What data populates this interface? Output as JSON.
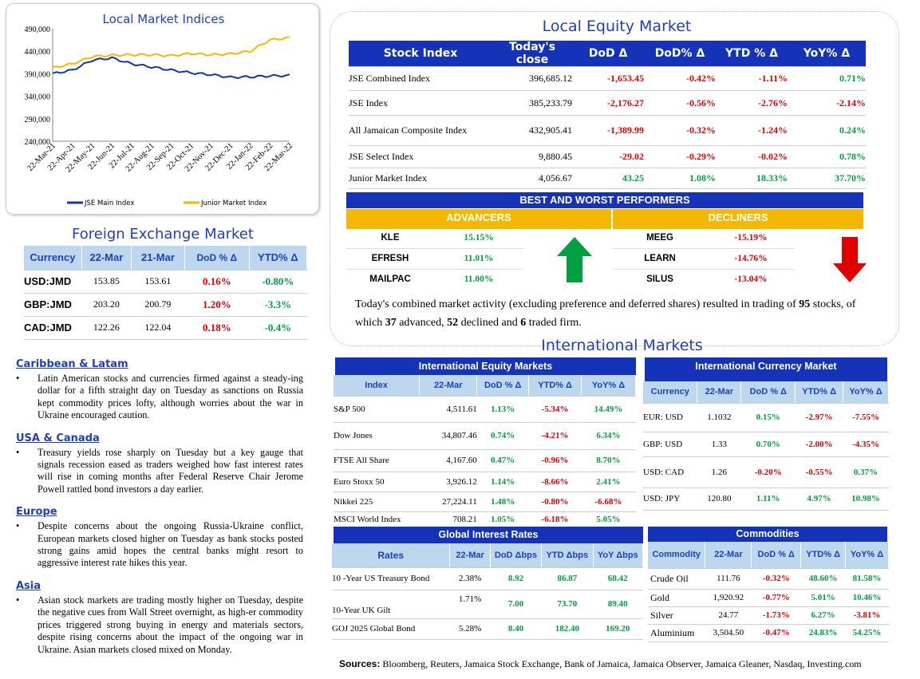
{
  "chart_data": {
    "type": "line",
    "title": "Local Market Indices",
    "x": [
      "22-Mar-21",
      "22-Apr-21",
      "22-May-21",
      "22-Jun-21",
      "22-Jul-21",
      "22-Aug-21",
      "22-Sep-21",
      "22-Oct-21",
      "22-Nov-21",
      "22-Dec-21",
      "22-Jan-22",
      "22-Feb-22",
      "22-Mar-22"
    ],
    "ylim": [
      240000,
      490000
    ],
    "yticks": [
      "490,000",
      "440,000",
      "390,000",
      "340,000",
      "290,000",
      "240,000"
    ],
    "series": [
      {
        "name": "JSE Main Index",
        "color": "#1433b8",
        "values": [
          390000,
          398000,
          420000,
          425000,
          412000,
          405000,
          398000,
          392000,
          388000,
          382000,
          383000,
          385000,
          386000
        ]
      },
      {
        "name": "Junior Market Index",
        "color": "#f5b800",
        "values": [
          403000,
          412000,
          428000,
          431000,
          432000,
          432000,
          430000,
          435000,
          432000,
          434000,
          440000,
          465000,
          470000
        ]
      }
    ]
  },
  "fx": {
    "title": "Foreign Exchange Market",
    "headers": [
      "Currency",
      "22-Mar",
      "21-Mar",
      "DoD % Δ",
      "YTD% Δ"
    ],
    "rows": [
      [
        "USD:JMD",
        "153.85",
        "153.61",
        "0.16%",
        "-0.80%"
      ],
      [
        "GBP:JMD",
        "203.20",
        "200.79",
        "1.20%",
        "-3.3%"
      ],
      [
        "CAD:JMD",
        "122.26",
        "122.04",
        "0.18%",
        "-0.4%"
      ]
    ]
  },
  "news": [
    {
      "head": "Caribbean & Latam",
      "text": "Latin American stocks and currencies firmed against a steady-ing dollar for a fifth straight day on Tuesday as sanctions on Russia kept commodity prices lofty, although worries about the war in Ukraine encouraged caution."
    },
    {
      "head": "USA & Canada",
      "text": "Treasury yields rose sharply on Tuesday but a key gauge that signals recession eased as traders weighed how fast interest rates will rise in coming months after Federal Reserve Chair Jerome Powell rattled bond investors a day earlier."
    },
    {
      "head": "Europe",
      "text": "Despite concerns about the ongoing Russia-Ukraine conflict, European markets closed higher on Tuesday as bank stocks posted strong gains amid hopes the central banks might resort to aggressive interest rate hikes this year."
    },
    {
      "head": "Asia",
      "text": "Asian stock markets are trading mostly higher on Tuesday, despite the negative cues from Wall Street overnight, as high-er commodity prices triggered strong buying in energy and materials sectors, despite rising concerns about the impact of the ongoing war in Ukraine. Asian markets closed mixed on Monday."
    }
  ],
  "equity": {
    "title": "Local Equity Market",
    "headers": [
      "Stock Index",
      "Today's close",
      "DoD  Δ",
      "DoD% Δ",
      "YTD % Δ",
      "YoY% Δ"
    ],
    "rows": [
      [
        "JSE Combined Index",
        "396,685.12",
        "-1,653.45",
        "-0.42%",
        "-1.11%",
        "0.71%"
      ],
      [
        "JSE Index",
        "385,233.79",
        "-2,176.27",
        "-0.56%",
        "-2.76%",
        "-2.14%"
      ],
      [
        "All Jamaican Composite Index",
        "432,905.41",
        "-1,389.99",
        "-0.32%",
        "-1.24%",
        "0.24%"
      ],
      [
        "JSE Select Index",
        "9,880.45",
        "-29.02",
        "-0.29%",
        "-0.02%",
        "0.78%"
      ],
      [
        "Junior Market Index",
        "4,056.67",
        "43.25",
        "1.08%",
        "18.33%",
        "37.70%"
      ]
    ]
  },
  "performers": {
    "title": "BEST AND WORST PERFORMERS",
    "adv_label": "ADVANCERS",
    "dec_label": "DECLINERS",
    "advancers": [
      [
        "KLE",
        "15.15%"
      ],
      [
        "EFRESH",
        "11.01%"
      ],
      [
        "MAILPAC",
        "11.00%"
      ]
    ],
    "decliners": [
      [
        "MEEG",
        "-15.19%"
      ],
      [
        "LEARN",
        "-14.76%"
      ],
      [
        "SILUS",
        "-13.04%"
      ]
    ]
  },
  "summary": {
    "pre": "Today's combined market activity (excluding preference and deferred shares) resulted in trading of ",
    "total": "95",
    "mid1": " stocks, of which ",
    "adv": "37",
    "mid2": " advanced, ",
    "dec": "52",
    "mid3": " declined and ",
    "firm": "6",
    "post": " traded firm."
  },
  "intl_title": "International Markets",
  "intl_equity": {
    "title": "International Equity Markets",
    "headers": [
      "Index",
      "22-Mar",
      "DoD % Δ",
      "YTD% Δ",
      "YoY% Δ"
    ],
    "rows": [
      [
        "S&P 500",
        "4,511.61",
        "1.13%",
        "-5.34%",
        "14.49%"
      ],
      [
        "Dow Jones",
        "34,807.46",
        "0.74%",
        "-4.21%",
        "6.34%"
      ],
      [
        "FTSE All Share",
        "4,167.60",
        "0.47%",
        "-0.96%",
        "8.70%"
      ],
      [
        "Euro Stoxx 50",
        "3,926.12",
        "1.14%",
        "-8.66%",
        "2.41%"
      ],
      [
        "Nikkei 225",
        "27,224.11",
        "1.48%",
        "-0.80%",
        "-6.68%"
      ],
      [
        "MSCI World Index",
        "708.21",
        "1.05%",
        "-6.18%",
        "5.05%"
      ]
    ]
  },
  "intl_fx": {
    "title": "International Currency Market",
    "headers": [
      "Currency",
      "22-Mar",
      "DoD % Δ",
      "YTD% Δ",
      "YoY% Δ"
    ],
    "rows": [
      [
        "EUR: USD",
        "1.1032",
        "0.15%",
        "-2.97%",
        "-7.55%"
      ],
      [
        "GBP: USD",
        "1.33",
        "0.70%",
        "-2.00%",
        "-4.35%"
      ],
      [
        "USD: CAD",
        "1.26",
        "-0.20%",
        "-0.55%",
        "0.37%"
      ],
      [
        "USD: JPY",
        "120.80",
        "1.11%",
        "4.97%",
        "10.98%"
      ]
    ]
  },
  "rates": {
    "title": "Global Interest Rates",
    "headers": [
      "Rates",
      "22-Mar",
      "DoD Δbps",
      "YTD Δbps",
      "YoY Δbps"
    ],
    "rows": [
      [
        "10 -Year US Treasury Bond",
        "2.38%",
        "8.92",
        "86.87",
        "68.42"
      ],
      [
        "10-Year UK Gilt",
        "1.71%",
        "7.00",
        "73.70",
        "89.40"
      ],
      [
        "GOJ 2025 Global Bond",
        "5.28%",
        "8.40",
        "182.40",
        "169.20"
      ]
    ]
  },
  "commodities": {
    "title": "Commodities",
    "headers": [
      "Commodity",
      "22-Mar",
      "DoD % Δ",
      "YTD% Δ",
      "YoY% Δ"
    ],
    "rows": [
      [
        "Crude Oil",
        "111.76",
        "-0.32%",
        "48.60%",
        "81.58%"
      ],
      [
        "Gold",
        "1,920.92",
        "-0.77%",
        "5.01%",
        "10.46%"
      ],
      [
        "Silver",
        "24.77",
        "-1.73%",
        "6.27%",
        "-3.81%"
      ],
      [
        "Aluminium",
        "3,504.50",
        "-0.47%",
        "24.83%",
        "54.25%"
      ]
    ]
  },
  "sources": {
    "label": "Sources:",
    "text": " Bloomberg, Reuters, Jamaica Stock Exchange, Bank of Jamaica, Jamaica Observer, Jamaica Gleaner, Nasdaq, Investing.com"
  }
}
